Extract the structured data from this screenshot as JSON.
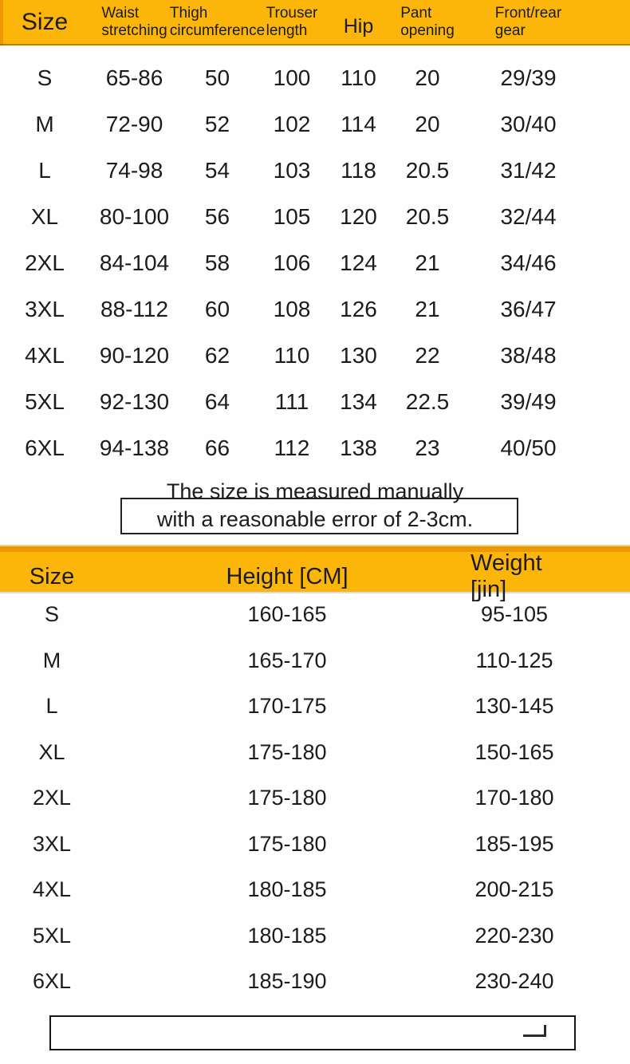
{
  "colors": {
    "band": "#fcb60a",
    "band-dark": "#ee9702",
    "ink": "#1c1c1c"
  },
  "table1": {
    "headers": [
      [
        "Size"
      ],
      [
        "Waist",
        "stretching"
      ],
      [
        "Thigh",
        "circumference"
      ],
      [
        "Trouser",
        "length"
      ],
      [
        "Hip"
      ],
      [
        "Pant",
        "opening"
      ],
      [
        "Front/rear",
        "gear"
      ]
    ],
    "rows": [
      [
        "S",
        "65-86",
        "50",
        "100",
        "110",
        "20",
        "29/39"
      ],
      [
        "M",
        "72-90",
        "52",
        "102",
        "114",
        "20",
        "30/40"
      ],
      [
        "L",
        "74-98",
        "54",
        "103",
        "118",
        "20.5",
        "31/42"
      ],
      [
        "XL",
        "80-100",
        "56",
        "105",
        "120",
        "20.5",
        "32/44"
      ],
      [
        "2XL",
        "84-104",
        "58",
        "106",
        "124",
        "21",
        "34/46"
      ],
      [
        "3XL",
        "88-112",
        "60",
        "108",
        "126",
        "21",
        "36/47"
      ],
      [
        "4XL",
        "90-120",
        "62",
        "110",
        "130",
        "22",
        "38/48"
      ],
      [
        "5XL",
        "92-130",
        "64",
        "111",
        "134",
        "22.5",
        "39/49"
      ],
      [
        "6XL",
        "94-138",
        "66",
        "112",
        "138",
        "23",
        "40/50"
      ]
    ]
  },
  "note": {
    "line1": "The size is measured manually",
    "line2": "with a reasonable error of 2-3cm."
  },
  "table2": {
    "headers": [
      "Size",
      "Height [CM]",
      "Weight [jin]"
    ],
    "rows": [
      [
        "S",
        "160-165",
        "95-105"
      ],
      [
        "M",
        "165-170",
        "110-125"
      ],
      [
        "L",
        "170-175",
        "130-145"
      ],
      [
        "XL",
        "175-180",
        "150-165"
      ],
      [
        "2XL",
        "175-180",
        "170-180"
      ],
      [
        "3XL",
        "175-180",
        "185-195"
      ],
      [
        "4XL",
        "180-185",
        "200-215"
      ],
      [
        "5XL",
        "180-185",
        "220-230"
      ],
      [
        "6XL",
        "185-190",
        "230-240"
      ]
    ]
  }
}
